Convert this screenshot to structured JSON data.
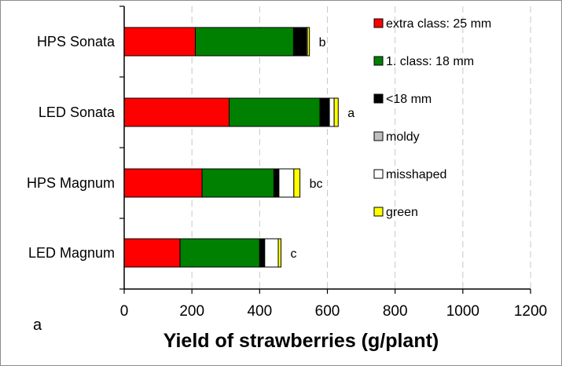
{
  "chart_data": {
    "type": "bar",
    "orientation": "horizontal",
    "stacked": true,
    "panel_label": "a",
    "xlabel": "Yield of strawberries (g/plant)",
    "ylabel": "",
    "xlim": [
      0,
      1200
    ],
    "xticks": [
      "0",
      "200",
      "400",
      "600",
      "800",
      "1000",
      "1200"
    ],
    "grid": "vertical dashed",
    "legend_position": "top-right",
    "categories": [
      "HPS Sonata",
      "LED Sonata",
      "HPS Magnum",
      "LED Magnum"
    ],
    "significance": [
      "b",
      "a",
      "bc",
      "c"
    ],
    "series": [
      {
        "name": "extra class: 25 mm",
        "color": "#ff0000",
        "values": [
          210,
          310,
          230,
          165
        ]
      },
      {
        "name": "1. class: 18 mm",
        "color": "#008000",
        "values": [
          290,
          268,
          212,
          235
        ]
      },
      {
        "name": "<18 mm",
        "color": "#000000",
        "values": [
          38,
          28,
          15,
          15
        ]
      },
      {
        "name": "moldy",
        "color": "#bfbfbf",
        "values": [
          0,
          0,
          0,
          0
        ]
      },
      {
        "name": "misshaped",
        "color": "#ffffff",
        "values": [
          3,
          14,
          44,
          40
        ]
      },
      {
        "name": "green",
        "color": "#ffff00",
        "values": [
          6,
          12,
          18,
          8
        ]
      }
    ]
  }
}
